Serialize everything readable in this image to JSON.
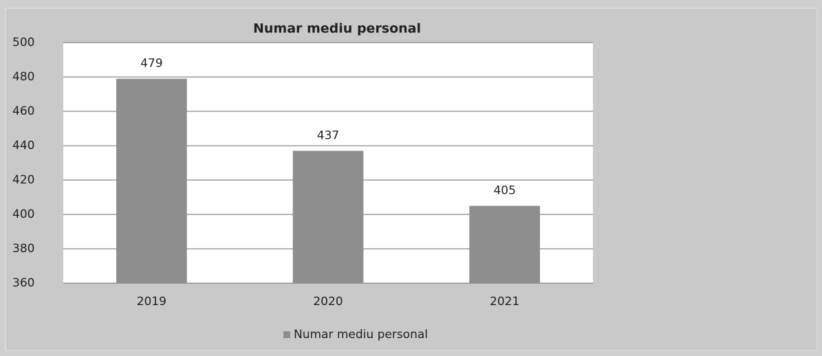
{
  "chart_data": {
    "type": "bar",
    "title": "Numar mediu personal",
    "categories": [
      "2019",
      "2020",
      "2021"
    ],
    "series": [
      {
        "name": "Numar mediu personal",
        "color": "#8e8e8e",
        "values": [
          479,
          437,
          405
        ]
      }
    ],
    "ylim": [
      360,
      500
    ],
    "yticks": [
      360,
      380,
      400,
      420,
      440,
      460,
      480,
      500
    ],
    "grid": true,
    "legend": "bottom"
  }
}
